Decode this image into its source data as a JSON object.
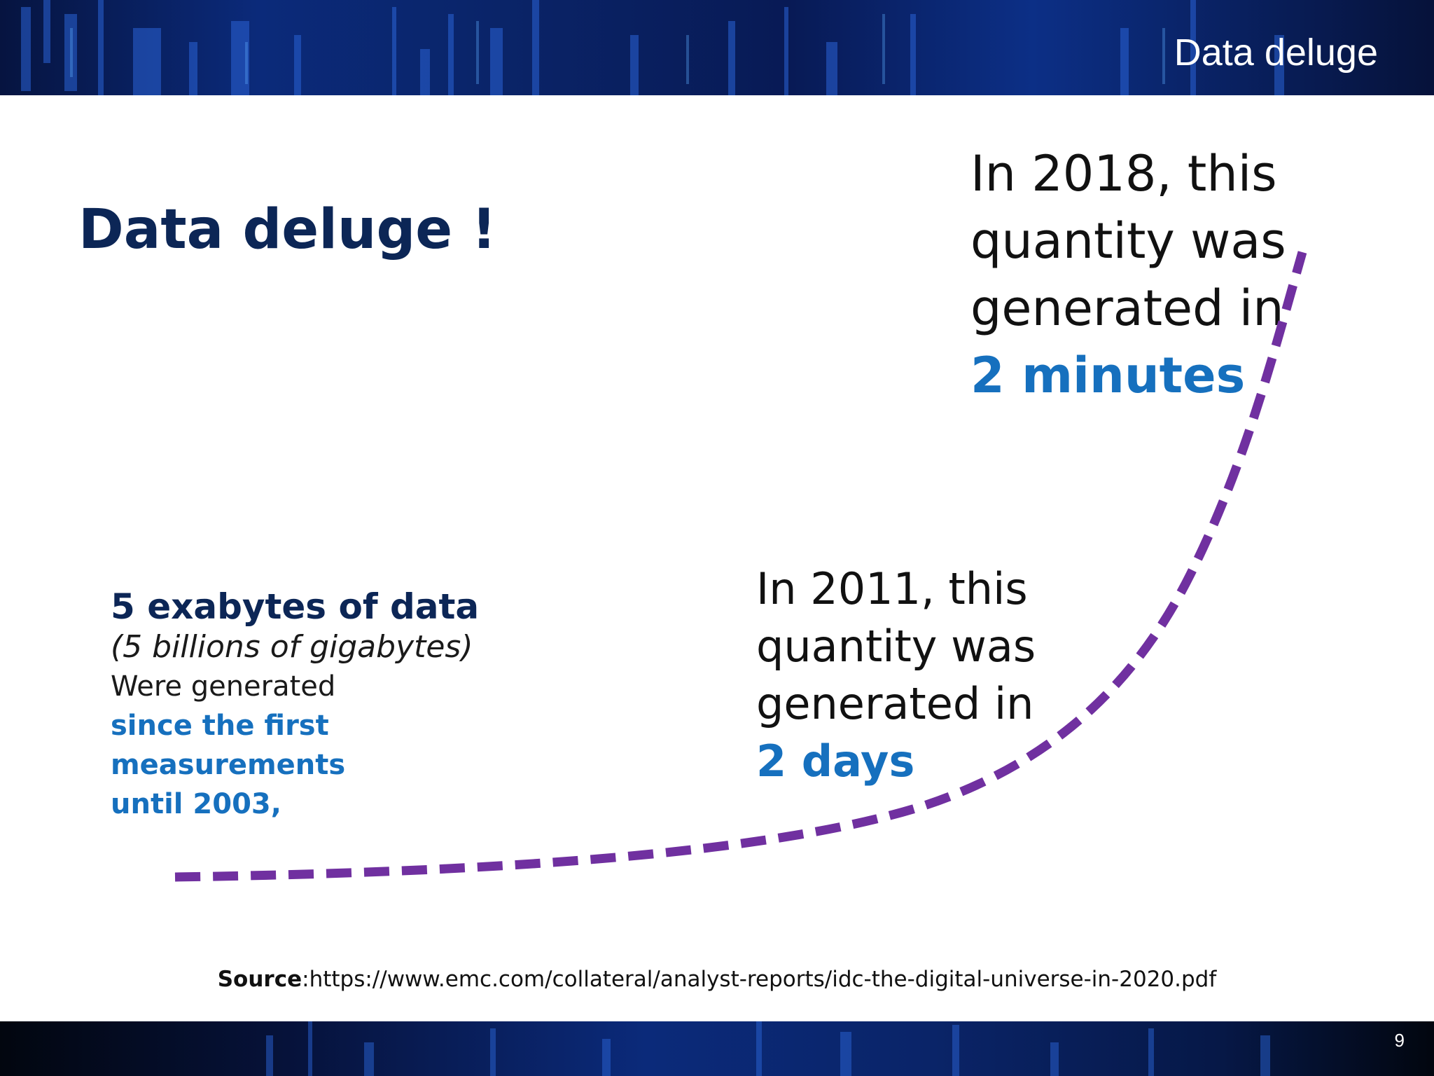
{
  "header": {
    "title": "Data deluge"
  },
  "slide": {
    "heading": "Data deluge !",
    "left_block": {
      "line1": "5 exabytes of data",
      "line2": "(5 billions of gigabytes)",
      "line3": "Were generated",
      "line4": "since the first",
      "line5": "measurements",
      "line6": "until 2003,"
    },
    "block_2011": {
      "line1": "In 2011, this",
      "line2": "quantity was",
      "line3": "generated in",
      "emphasis": "2 days"
    },
    "block_2018": {
      "line1": "In 2018, this",
      "line2": "quantity was",
      "line3": "generated in",
      "emphasis": "2 minutes"
    },
    "source": {
      "label": "Source",
      "text": ":https://www.emc.com/collateral/analyst-reports/idc-the-digital-universe-in-2020.pdf"
    }
  },
  "footer": {
    "page_number": "9"
  },
  "colors": {
    "heading": "#0c2656",
    "accent_blue": "#1670be",
    "curve": "#7030a0"
  }
}
